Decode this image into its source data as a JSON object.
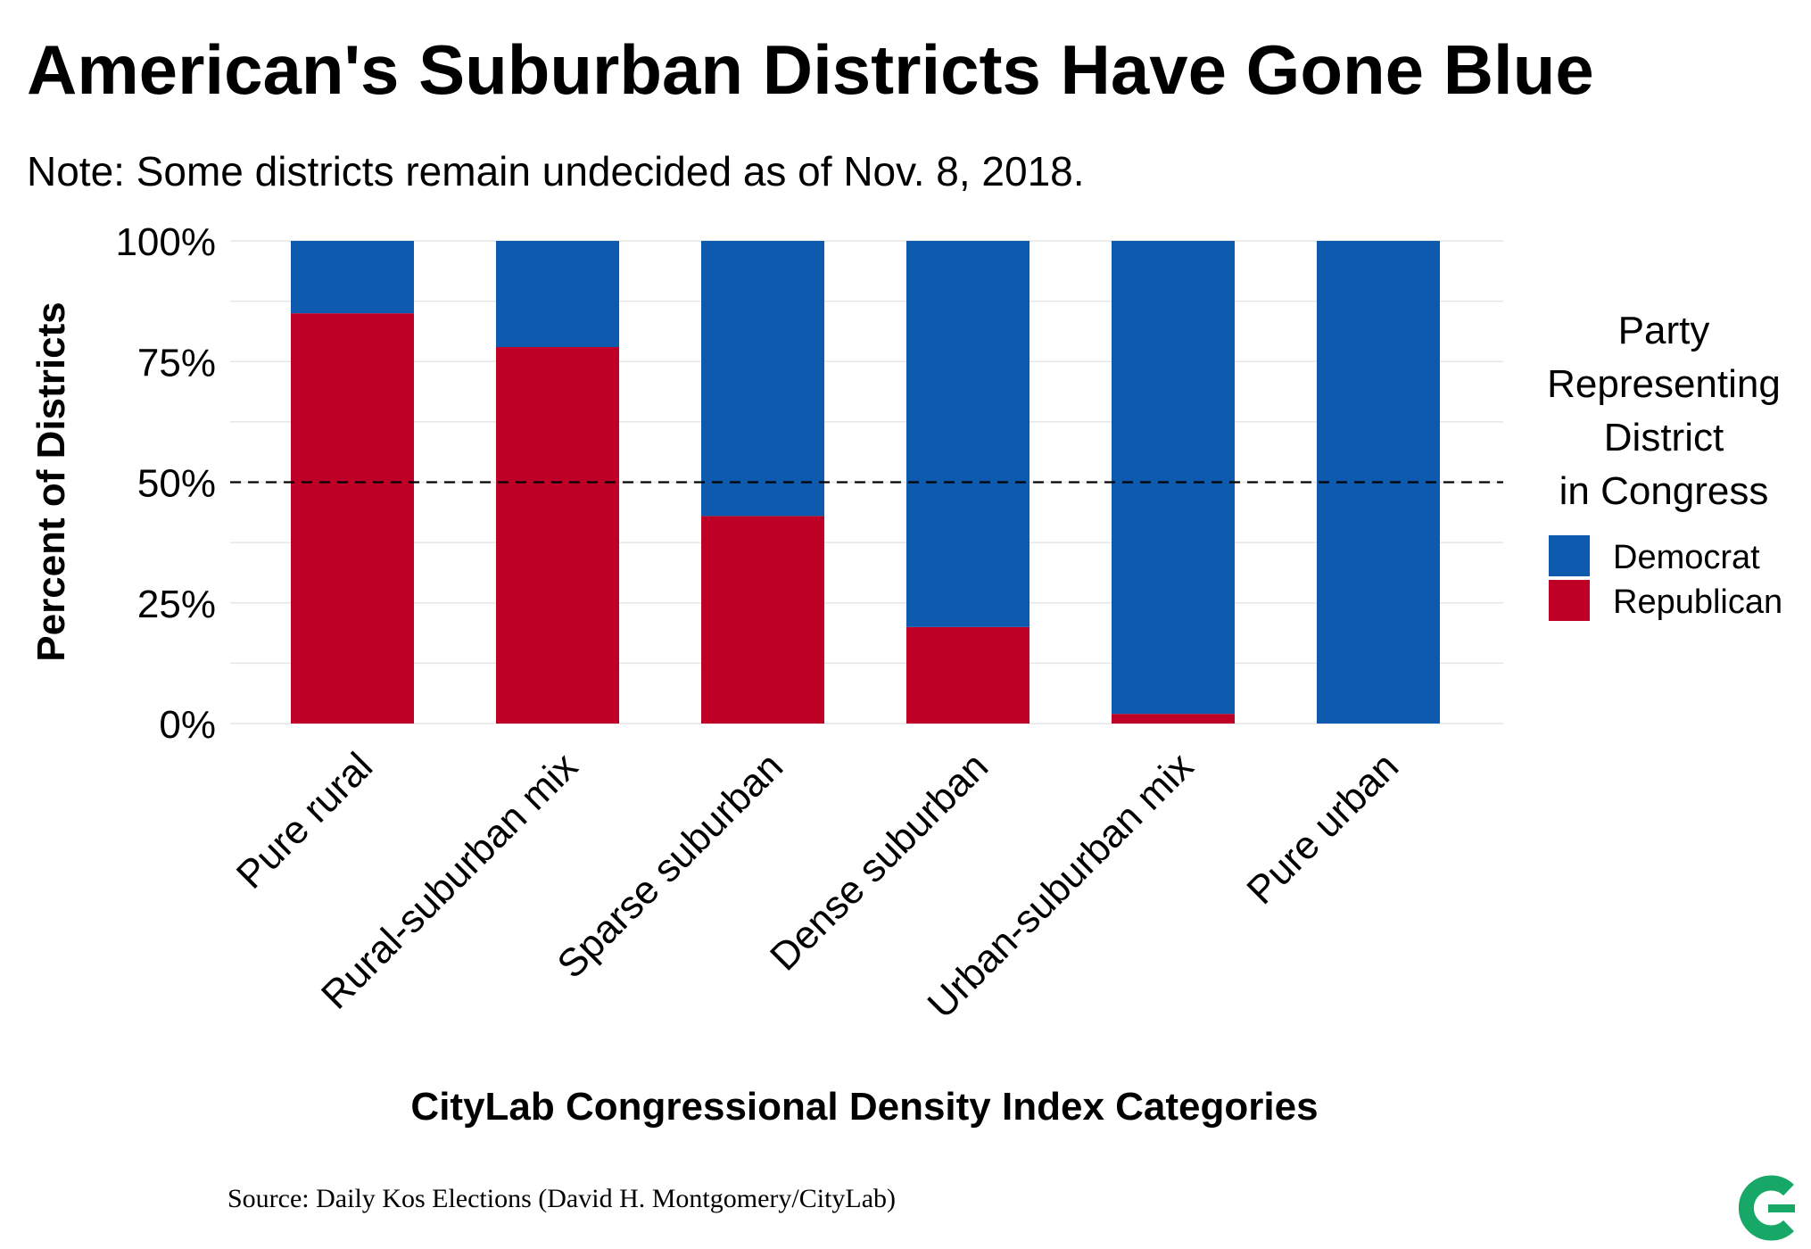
{
  "title": "American's Suburban Districts Have Gone Blue",
  "subtitle": "Note: Some districts remain undecided as of Nov. 8, 2018.",
  "source": "Source: Daily Kos Elections (David H. Montgomery/CityLab)",
  "legend": {
    "title_lines": [
      "Party",
      "Representing",
      "District",
      "in Congress"
    ],
    "items": [
      {
        "label": "Democrat",
        "color": "#0d5aae"
      },
      {
        "label": "Republican",
        "color": "#be0026"
      }
    ]
  },
  "logo": {
    "icon": "citylab-logo-icon",
    "color": "#17a868"
  },
  "chart_data": {
    "type": "bar",
    "stacked": true,
    "categories": [
      "Pure rural",
      "Rural-suburban mix",
      "Sparse suburban",
      "Dense suburban",
      "Urban-suburban mix",
      "Pure urban"
    ],
    "series": [
      {
        "name": "Republican",
        "color": "#be0026",
        "values": [
          85,
          78,
          43,
          20,
          2,
          0
        ]
      },
      {
        "name": "Democrat",
        "color": "#0d5aae",
        "values": [
          15,
          22,
          57,
          80,
          98,
          100
        ]
      }
    ],
    "xlabel": "CityLab Congressional Density Index Categories",
    "ylabel": "Percent of Districts",
    "ylim": [
      0,
      100
    ],
    "y_ticks": [
      0,
      25,
      50,
      75,
      100
    ],
    "y_tick_labels": [
      "0%",
      "25%",
      "50%",
      "75%",
      "100%"
    ],
    "reference_line": {
      "value": 50,
      "style": "dashed"
    },
    "grid": true,
    "legend_position": "right"
  }
}
